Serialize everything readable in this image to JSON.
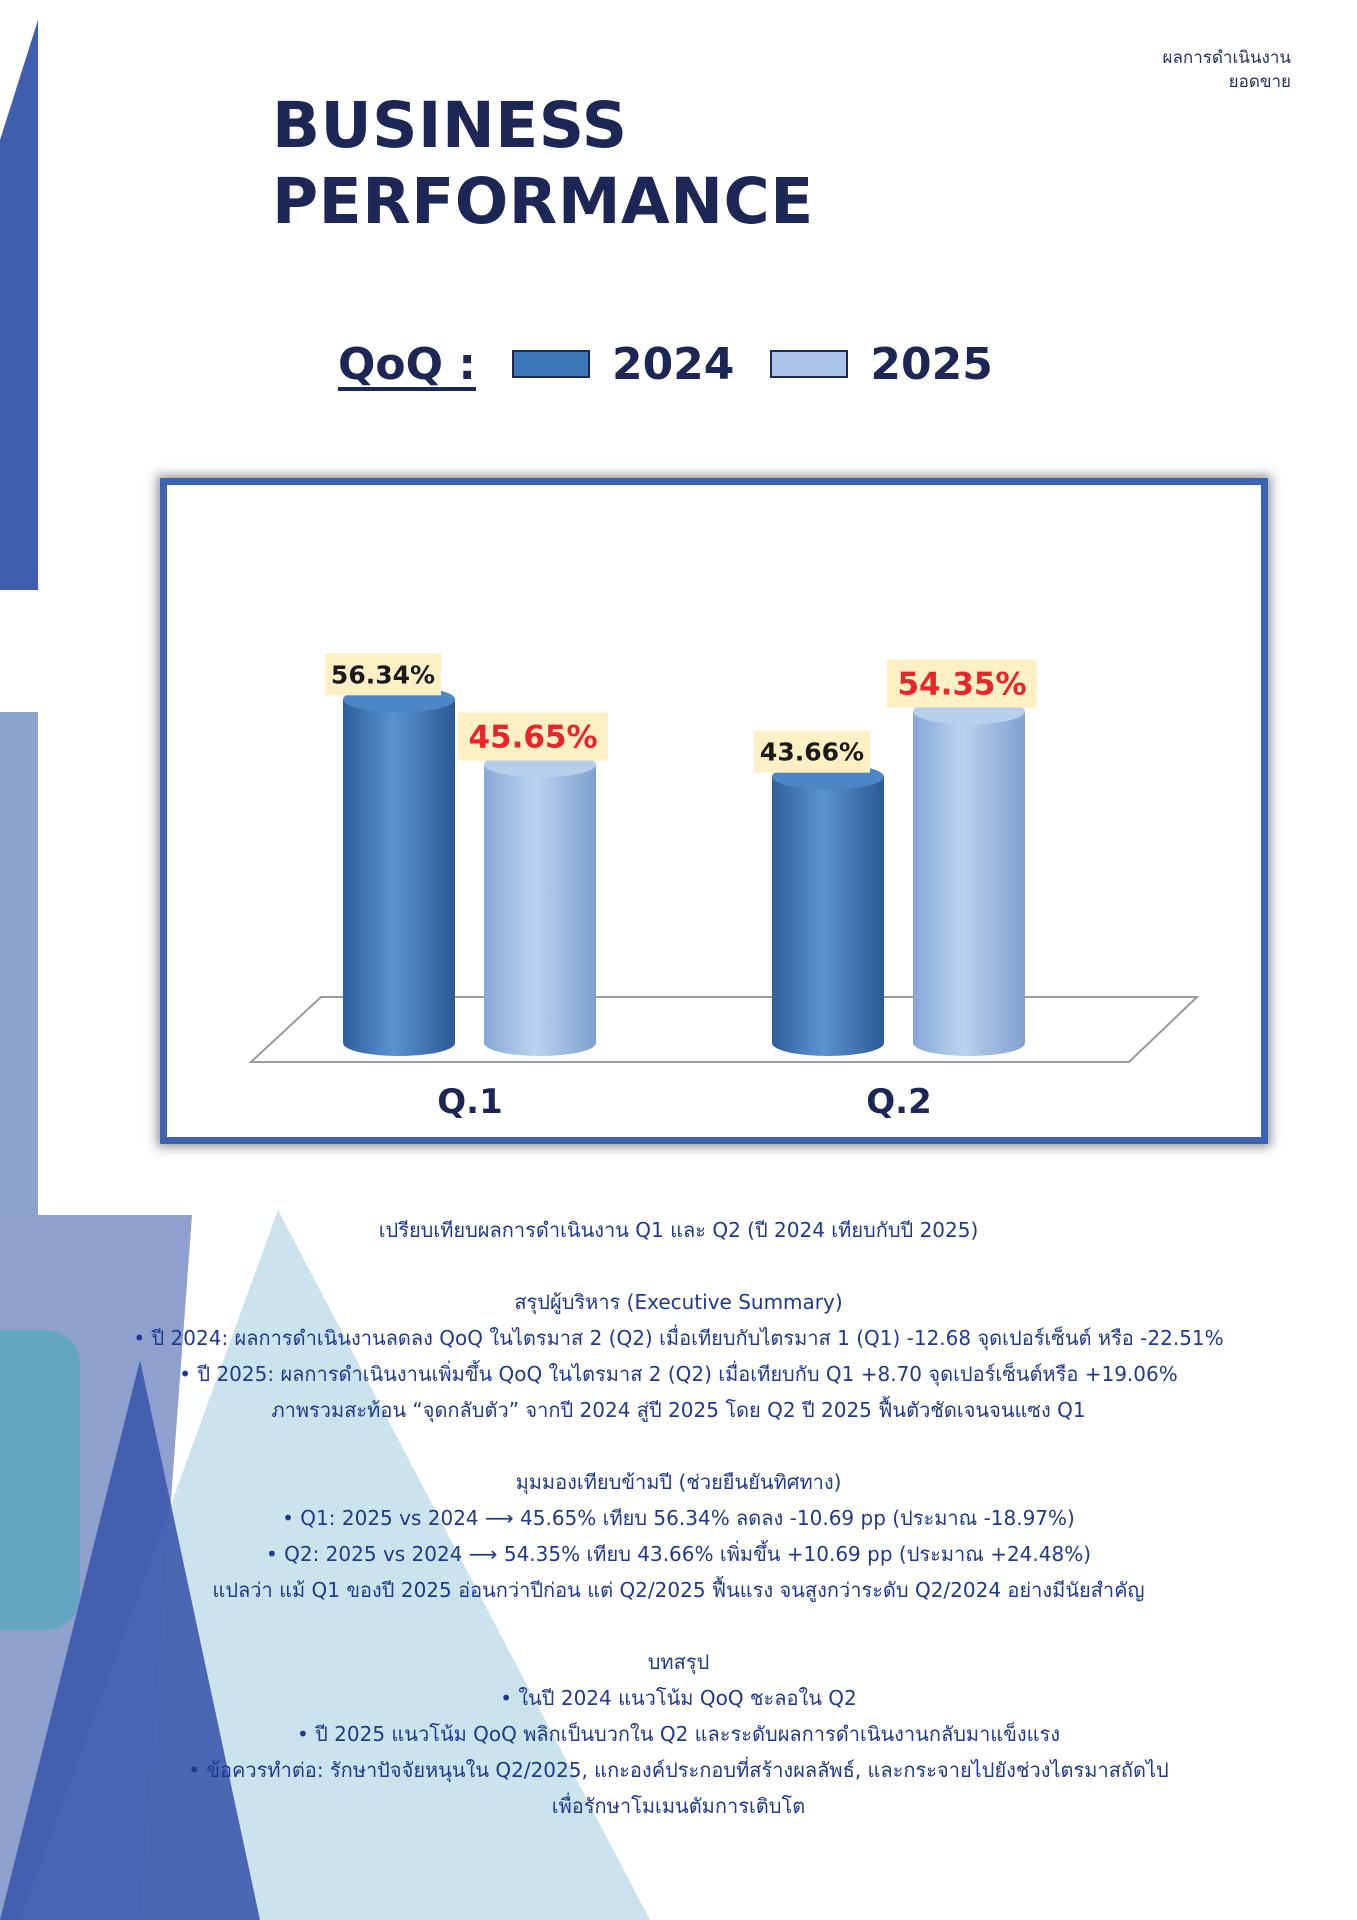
{
  "header": {
    "line1": "ผลการดำเนินงาน",
    "line2": "ยอดขาย"
  },
  "title": {
    "line1": "BUSINESS",
    "line2": "PERFORMANCE"
  },
  "legend": {
    "prefix": "QoQ :"
  },
  "colors": {
    "series_2024": "#3f78b8",
    "series_2025": "#a8c3e6",
    "highlight": "#e8262a",
    "frame": "#3f63b3"
  },
  "chart_data": {
    "type": "bar",
    "categories": [
      "Q.1",
      "Q.2"
    ],
    "series": [
      {
        "name": "2024",
        "values": [
          56.34,
          43.66
        ],
        "labels": [
          "56.34%",
          "43.66%"
        ]
      },
      {
        "name": "2025",
        "values": [
          45.65,
          54.35
        ],
        "labels": [
          "45.65%",
          "54.35%"
        ]
      }
    ],
    "ylim": [
      0,
      60
    ],
    "grid": false,
    "legend_position": "top",
    "title": "",
    "xlabel": "",
    "ylabel": ""
  },
  "text": {
    "caption": "เปรียบเทียบผลการดำเนินงาน Q1 และ Q2 (ปี 2024 เทียบกับปี 2025)",
    "summary_title": "สรุปผู้บริหาร (Executive Summary)",
    "summary_1": "• ปี 2024: ผลการดำเนินงานลดลง QoQ ในไตรมาส 2 (Q2) เมื่อเทียบกับไตรมาส 1 (Q1) -12.68 จุดเปอร์เซ็นต์ หรือ -22.51%",
    "summary_2": "• ปี 2025: ผลการดำเนินงานเพิ่มขึ้น QoQ ในไตรมาส 2 (Q2) เมื่อเทียบกับ Q1 +8.70 จุดเปอร์เซ็นต์หรือ +19.06%",
    "summary_3": "ภาพรวมสะท้อน “จุดกลับตัว” จากปี 2024 สู่ปี 2025 โดย Q2 ปี 2025 ฟื้นตัวชัดเจนจนแซง Q1",
    "yoy_title": "มุมมองเทียบข้ามปี (ช่วยยืนยันทิศทาง)",
    "yoy_1": "• Q1: 2025 vs 2024 ⟶ 45.65% เทียบ 56.34% ลดลง -10.69 pp (ประมาณ -18.97%)",
    "yoy_2": "• Q2: 2025 vs 2024 ⟶ 54.35% เทียบ 43.66% เพิ่มขึ้น +10.69 pp (ประมาณ +24.48%)",
    "yoy_3": "แปลว่า แม้ Q1 ของปี 2025 อ่อนกว่าปีก่อน แต่ Q2/2025 ฟื้นแรง จนสูงกว่าระดับ Q2/2024 อย่างมีนัยสำคัญ",
    "conclusion_title": "บทสรุป",
    "conclusion_1": "• ในปี 2024 แนวโน้ม QoQ  ชะลอใน Q2",
    "conclusion_2": "• ปี 2025 แนวโน้ม QoQ พลิกเป็นบวกใน Q2 และระดับผลการดำเนินงานกลับมาแข็งแรง",
    "conclusion_3": "• ข้อควรทำต่อ: รักษาปัจจัยหนุนใน Q2/2025, แกะองค์ประกอบที่สร้างผลลัพธ์, และกระจายไปยังช่วงไตรมาสถัดไป",
    "conclusion_4": "เพื่อรักษาโมเมนตัมการเติบโต"
  }
}
